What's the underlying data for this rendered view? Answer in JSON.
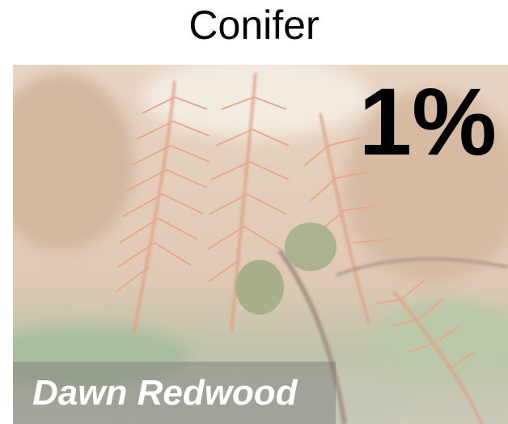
{
  "title": "Conifer",
  "score": "1%",
  "label": "Dawn Redwood"
}
